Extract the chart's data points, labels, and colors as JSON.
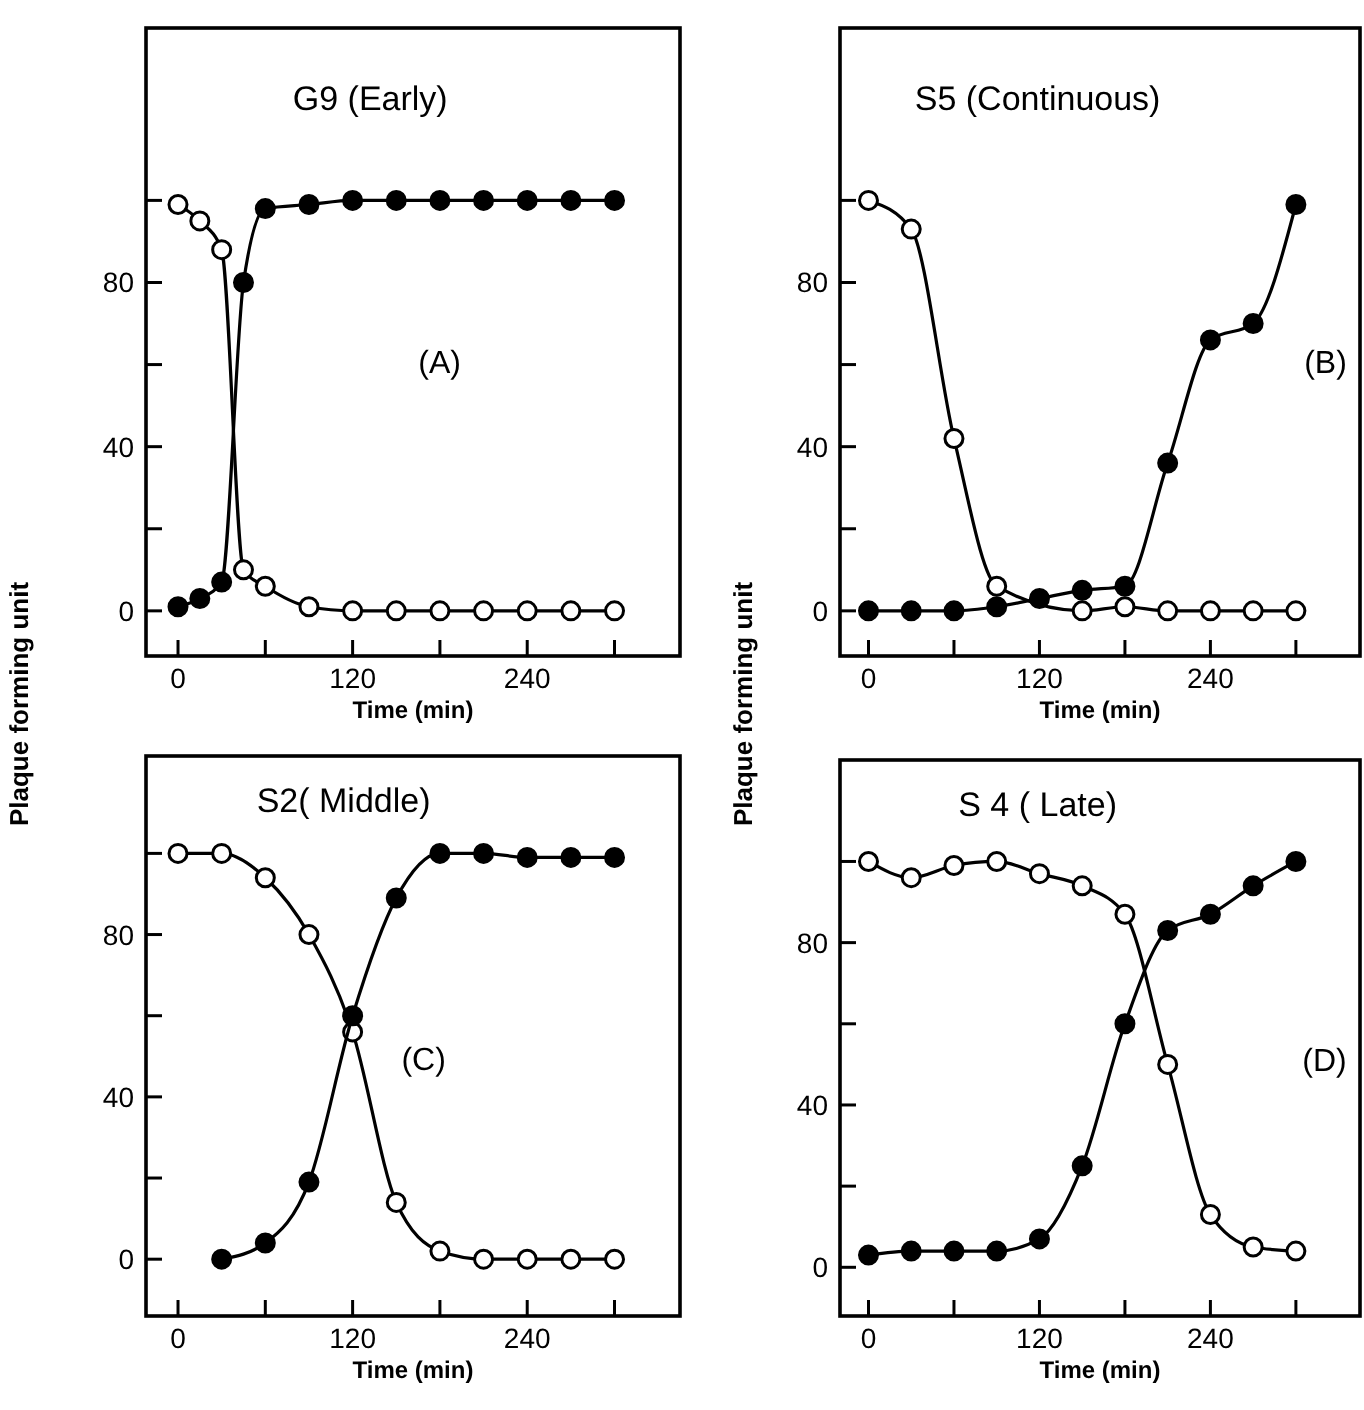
{
  "chart_data": [
    {
      "type": "line",
      "title": "G9 (Early)",
      "xlabel": "Time (min)",
      "ylabel": "Plaque forming unit",
      "annotations": [
        "(A)"
      ],
      "marker": "circle",
      "line_style": "solid",
      "grid": false,
      "xlim": [
        -22,
        345
      ],
      "ylim": [
        -11,
        142
      ],
      "xticks": [
        0,
        {
          "value": 60,
          "label": null
        },
        120,
        {
          "value": 180,
          "label": null
        },
        240,
        {
          "value": 300,
          "label": null
        }
      ],
      "yticks": [
        0,
        {
          "value": 20,
          "label": null
        },
        40,
        {
          "value": 60,
          "label": null
        },
        80,
        {
          "value": 100,
          "label": null
        }
      ],
      "series": [
        {
          "color": "#ffffff",
          "x": [
            0,
            15,
            30,
            45,
            60,
            90,
            120,
            150,
            180,
            210,
            240,
            270,
            300
          ],
          "values": [
            99,
            95,
            88,
            10,
            6,
            1,
            0,
            0,
            0,
            0,
            0,
            0,
            0
          ]
        },
        {
          "color": "#000000",
          "x": [
            0,
            15,
            30,
            45,
            60,
            90,
            120,
            150,
            180,
            210,
            240,
            270,
            300
          ],
          "values": [
            1,
            3,
            7,
            80,
            98,
            99,
            100,
            100,
            100,
            100,
            100,
            100,
            100
          ]
        }
      ]
    },
    {
      "type": "line",
      "title": "S5 (Continuous)",
      "xlabel": "Time (min)",
      "annotations": [
        "(B)"
      ],
      "marker": "circle",
      "line_style": "solid",
      "grid": false,
      "xlim": [
        -20,
        345
      ],
      "ylim": [
        -11,
        142
      ],
      "xticks": [
        0,
        {
          "value": 60,
          "label": null
        },
        120,
        {
          "value": 180,
          "label": null
        },
        240,
        {
          "value": 300,
          "label": null
        }
      ],
      "yticks": [
        0,
        {
          "value": 20,
          "label": null
        },
        40,
        {
          "value": 60,
          "label": null
        },
        80,
        {
          "value": 100,
          "label": null
        }
      ],
      "series": [
        {
          "color": "#ffffff",
          "x": [
            0,
            30,
            60,
            90,
            150,
            180,
            210,
            240,
            270,
            300
          ],
          "values": [
            100,
            93,
            42,
            6,
            0,
            1,
            0,
            0,
            0,
            0
          ]
        },
        {
          "color": "#000000",
          "x": [
            0,
            30,
            60,
            90,
            120,
            150,
            180,
            210,
            240,
            270,
            300
          ],
          "values": [
            0,
            0,
            0,
            1,
            3,
            5,
            6,
            36,
            66,
            70,
            99
          ]
        }
      ]
    },
    {
      "type": "line",
      "title": "S2( Middle)",
      "xlabel": "Time (min)",
      "annotations": [
        "(C)"
      ],
      "marker": "circle",
      "line_style": "solid",
      "grid": false,
      "xlim": [
        -22,
        345
      ],
      "ylim": [
        -14,
        124
      ],
      "xticks": [
        0,
        {
          "value": 60,
          "label": null
        },
        120,
        {
          "value": 180,
          "label": null
        },
        240,
        {
          "value": 300,
          "label": null
        }
      ],
      "yticks": [
        0,
        {
          "value": 20,
          "label": null
        },
        40,
        {
          "value": 60,
          "label": null
        },
        80,
        {
          "value": 100,
          "label": null
        }
      ],
      "series": [
        {
          "color": "#ffffff",
          "x": [
            0,
            30,
            60,
            90,
            120,
            150,
            180,
            210,
            240,
            270,
            300
          ],
          "values": [
            100,
            100,
            94,
            80,
            56,
            14,
            2,
            0,
            0,
            0,
            0
          ]
        },
        {
          "color": "#000000",
          "x": [
            30,
            60,
            90,
            120,
            150,
            180,
            210,
            240,
            270,
            300
          ],
          "values": [
            0,
            4,
            19,
            60,
            89,
            100,
            100,
            99,
            99,
            99
          ]
        }
      ]
    },
    {
      "type": "line",
      "title": "S 4 ( Late)",
      "xlabel": "Time (min)",
      "ylabel": "Plaque forming unit",
      "annotations": [
        "(D)"
      ],
      "marker": "circle",
      "line_style": "solid",
      "grid": false,
      "xlim": [
        -20,
        345
      ],
      "ylim": [
        -12,
        125
      ],
      "xticks": [
        0,
        {
          "value": 60,
          "label": null
        },
        120,
        {
          "value": 180,
          "label": null
        },
        240,
        {
          "value": 300,
          "label": null
        }
      ],
      "yticks": [
        0,
        {
          "value": 20,
          "label": null
        },
        40,
        {
          "value": 60,
          "label": null
        },
        80,
        {
          "value": 100,
          "label": null
        }
      ],
      "series": [
        {
          "color": "#ffffff",
          "x": [
            0,
            30,
            60,
            90,
            120,
            150,
            180,
            210,
            240,
            270,
            300
          ],
          "values": [
            100,
            96,
            99,
            100,
            97,
            94,
            87,
            50,
            13,
            5,
            4
          ]
        },
        {
          "color": "#000000",
          "x": [
            0,
            30,
            60,
            90,
            120,
            150,
            180,
            210,
            240,
            270,
            300
          ],
          "values": [
            3,
            4,
            4,
            4,
            7,
            25,
            60,
            83,
            87,
            94,
            100
          ]
        }
      ]
    }
  ]
}
